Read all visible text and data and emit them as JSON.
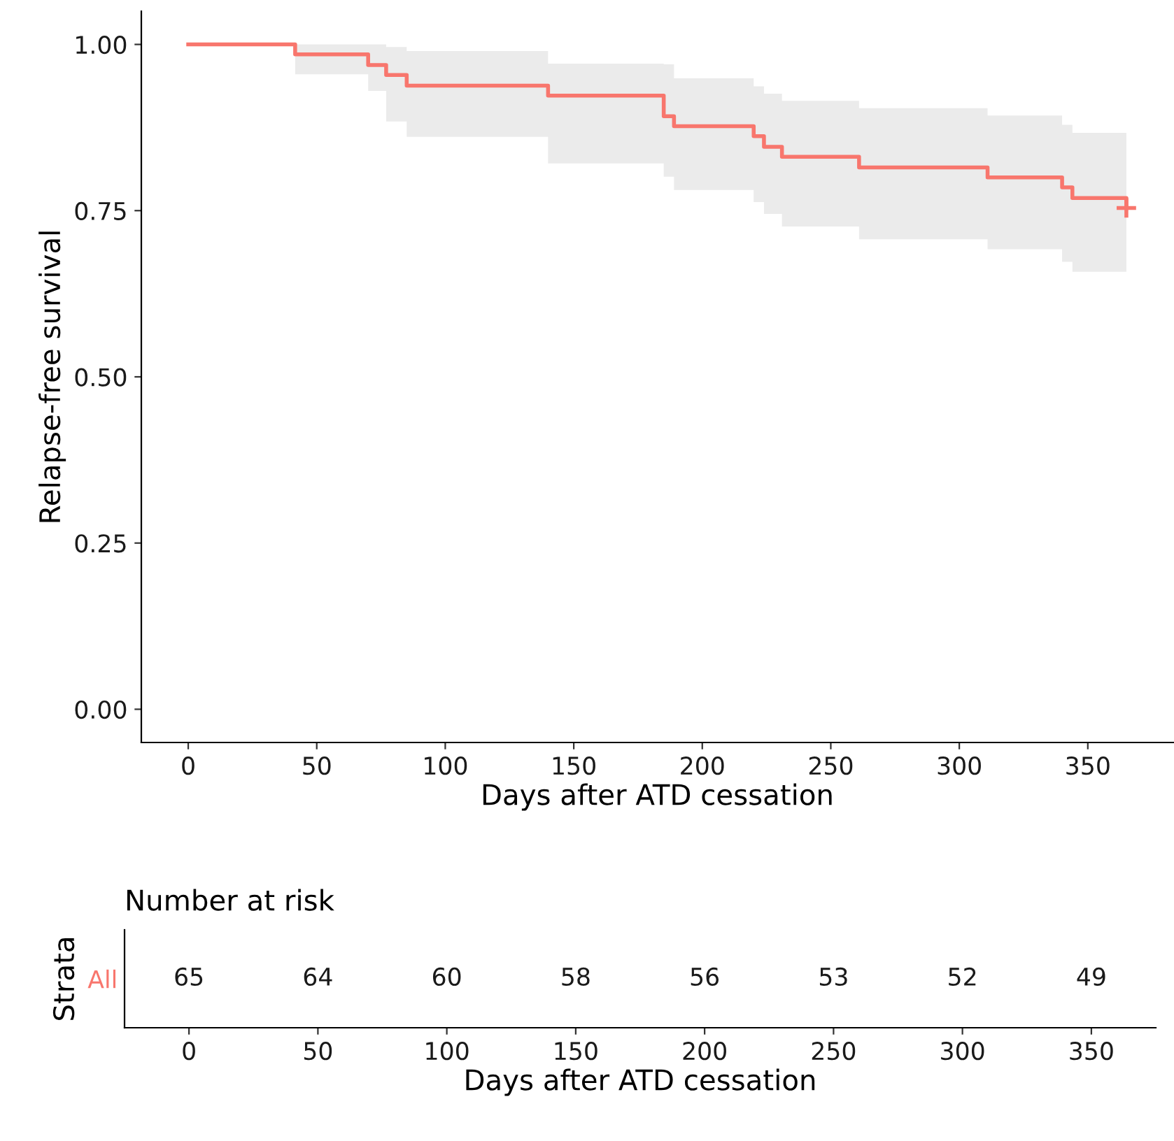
{
  "chart_data": [
    {
      "type": "step",
      "ylabel": "Relapse-free survival",
      "xlabel": "Days after ATD cessation",
      "xlim": [
        -18.25,
        383.25
      ],
      "xticks": [
        0,
        50,
        100,
        150,
        200,
        250,
        300,
        350
      ],
      "ylim": [
        -0.05,
        1.05
      ],
      "yticks": [
        {
          "value": 0,
          "label": "0.00"
        },
        {
          "value": 0.25,
          "label": "0.25"
        },
        {
          "value": 0.5,
          "label": "0.50"
        },
        {
          "value": 0.75,
          "label": "0.75"
        },
        {
          "value": 1,
          "label": "1.00"
        }
      ],
      "grid": false,
      "legend": false,
      "series": [
        {
          "color": "#f8766d",
          "x": [
            0,
            41.6,
            70,
            77,
            85,
            140,
            185,
            189,
            220,
            224,
            231,
            261,
            311,
            340,
            344,
            365
          ],
          "values": [
            1,
            0.985,
            0.969,
            0.954,
            0.938,
            0.923,
            0.892,
            0.877,
            0.862,
            0.846,
            0.831,
            0.815,
            0.8,
            0.785,
            0.769,
            0.754
          ],
          "lower": [
            1,
            0.955,
            0.93,
            0.884,
            0.861,
            0.821,
            0.801,
            0.781,
            0.763,
            0.745,
            0.726,
            0.707,
            0.692,
            0.673,
            0.658,
            0.658
          ],
          "upper": [
            1,
            1,
            1,
            0.996,
            0.99,
            0.971,
            0.97,
            0.949,
            0.937,
            0.926,
            0.915,
            0.904,
            0.893,
            0.879,
            0.867,
            0.867
          ]
        },
        {
          "type": "scatter",
          "marker": "cross",
          "color": "#f8766d",
          "x": [
            365
          ],
          "values": [
            0.754
          ]
        }
      ]
    },
    {
      "type": "heatmap",
      "title": "Number at risk",
      "ylabel": "Strata",
      "xlabel": "Days after ATD cessation",
      "data_labels": true,
      "categories": [
        "0",
        "50",
        "100",
        "150",
        "200",
        "250",
        "300",
        "350"
      ],
      "y_categories": [
        "All"
      ],
      "cells": [
        [
          65,
          64,
          60,
          58,
          56,
          53,
          52,
          49
        ]
      ]
    }
  ]
}
